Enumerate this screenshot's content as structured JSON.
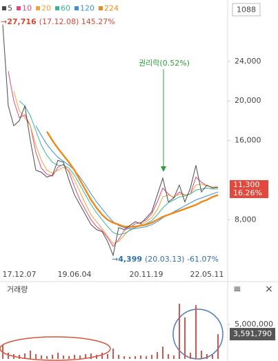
{
  "ui": {
    "code": "1088"
  },
  "chart_data": [
    {
      "type": "line",
      "categories": [
        null,
        null,
        null,
        "17.12.07",
        null,
        null,
        null,
        null,
        null,
        null,
        null,
        null,
        null,
        "19.06.04",
        null,
        null,
        null,
        null,
        null,
        null,
        null,
        null,
        null,
        null,
        null,
        null,
        "20.11.19",
        null,
        null,
        null,
        null,
        null,
        null,
        null,
        null,
        null,
        null,
        "22.05.11",
        null,
        null
      ],
      "series": [
        {
          "name": "5",
          "color": "#4a4a4a",
          "values": [
            27716,
            19500,
            17500,
            18000,
            19500,
            16000,
            13000,
            12800,
            12300,
            12500,
            14000,
            13800,
            12000,
            10500,
            9500,
            8500,
            7500,
            7000,
            6800,
            5800,
            4399,
            7200,
            7000,
            7400,
            7800,
            7600,
            8200,
            8800,
            10500,
            12200,
            9800,
            10200,
            11500,
            9800,
            11200,
            13500,
            10800,
            11500,
            11200,
            11300
          ]
        },
        {
          "name": "10",
          "color": "#e8457a",
          "values": [
            null,
            23000,
            20000,
            18300,
            18600,
            17500,
            14800,
            13200,
            12600,
            12400,
            13300,
            13600,
            12800,
            11300,
            10000,
            9000,
            8000,
            7300,
            6900,
            6200,
            5300,
            6000,
            6900,
            7200,
            7600,
            7700,
            8000,
            8600,
            9800,
            11200,
            10600,
            10200,
            10800,
            10500,
            10600,
            12300,
            11800,
            11400,
            11300,
            11300
          ]
        },
        {
          "name": "20",
          "color": "#f2a43a",
          "values": [
            null,
            null,
            21000,
            19000,
            18300,
            17500,
            15500,
            14000,
            13000,
            12700,
            13000,
            13300,
            13000,
            12000,
            10800,
            9600,
            8500,
            7800,
            7100,
            6300,
            5600,
            5800,
            6400,
            7000,
            7300,
            7500,
            7800,
            8200,
            9000,
            10300,
            10500,
            10300,
            10600,
            10500,
            10600,
            11500,
            11600,
            11400,
            11300,
            11200
          ]
        },
        {
          "name": "60",
          "color": "#3bb39a",
          "values": [
            null,
            null,
            null,
            20000,
            19500,
            18500,
            17000,
            15500,
            14500,
            13800,
            13500,
            13500,
            13200,
            12500,
            11500,
            10500,
            9500,
            8700,
            8000,
            7300,
            6700,
            6500,
            6600,
            6900,
            7200,
            7400,
            7600,
            7900,
            8500,
            9200,
            9700,
            10000,
            10300,
            10400,
            10600,
            11000,
            11100,
            11200,
            11100,
            11100
          ]
        },
        {
          "name": "120",
          "color": "#3d8fd8",
          "values": [
            null,
            null,
            null,
            null,
            null,
            null,
            17500,
            16500,
            15600,
            14900,
            14300,
            13900,
            13500,
            13000,
            12300,
            11500,
            10600,
            9800,
            9100,
            8400,
            7800,
            7400,
            7200,
            7100,
            7100,
            7200,
            7300,
            7500,
            7800,
            8200,
            8500,
            8800,
            9100,
            9400,
            9700,
            10000,
            10200,
            10400,
            10600,
            10800
          ]
        },
        {
          "name": "224",
          "color": "#ef8a1c",
          "values": [
            null,
            null,
            null,
            null,
            null,
            null,
            null,
            null,
            16900,
            16000,
            15200,
            14500,
            13800,
            13000,
            12000,
            11000,
            10000,
            9200,
            8500,
            8000,
            7700,
            7500,
            7300,
            7300,
            7300,
            7400,
            7500,
            7700,
            8000,
            8300,
            8500,
            8700,
            8900,
            9100,
            9300,
            9500,
            9800,
            10000,
            10300,
            10500
          ]
        }
      ],
      "ylim": [
        3000,
        29500
      ],
      "yticks": [
        {
          "value": 8000,
          "label": "8,000"
        },
        {
          "value": 16000,
          "label": "16,000"
        },
        {
          "value": 20000,
          "label": "20,000"
        },
        {
          "value": 24000,
          "label": "24,000"
        }
      ],
      "annotations": {
        "high": {
          "price": "27,716",
          "detail": "(17.12.08) 145.27%"
        },
        "low": {
          "price": "4,399",
          "detail": "(20.03.13) -61.07%"
        },
        "ex_rights": "권리락(0.52%)",
        "last": {
          "price": "11,300",
          "change": "16.26%"
        }
      }
    },
    {
      "type": "bar",
      "title": "거래량",
      "color": "#d9534f",
      "values": [
        2000000,
        900000,
        700000,
        600000,
        800000,
        1200000,
        700000,
        500000,
        400000,
        600000,
        900000,
        500000,
        400000,
        600000,
        500000,
        700000,
        800000,
        600000,
        900000,
        700000,
        1500000,
        600000,
        400000,
        300000,
        400000,
        500000,
        400000,
        600000,
        1000000,
        1800000,
        700000,
        500000,
        8000000,
        6000000,
        900000,
        7800000,
        1200000,
        700000,
        600000,
        3591790
      ],
      "ylim": [
        0,
        9000000
      ],
      "yticks": [
        {
          "value": 5000000,
          "label": "5,000,000"
        }
      ],
      "current_label": "3,591,790"
    }
  ]
}
